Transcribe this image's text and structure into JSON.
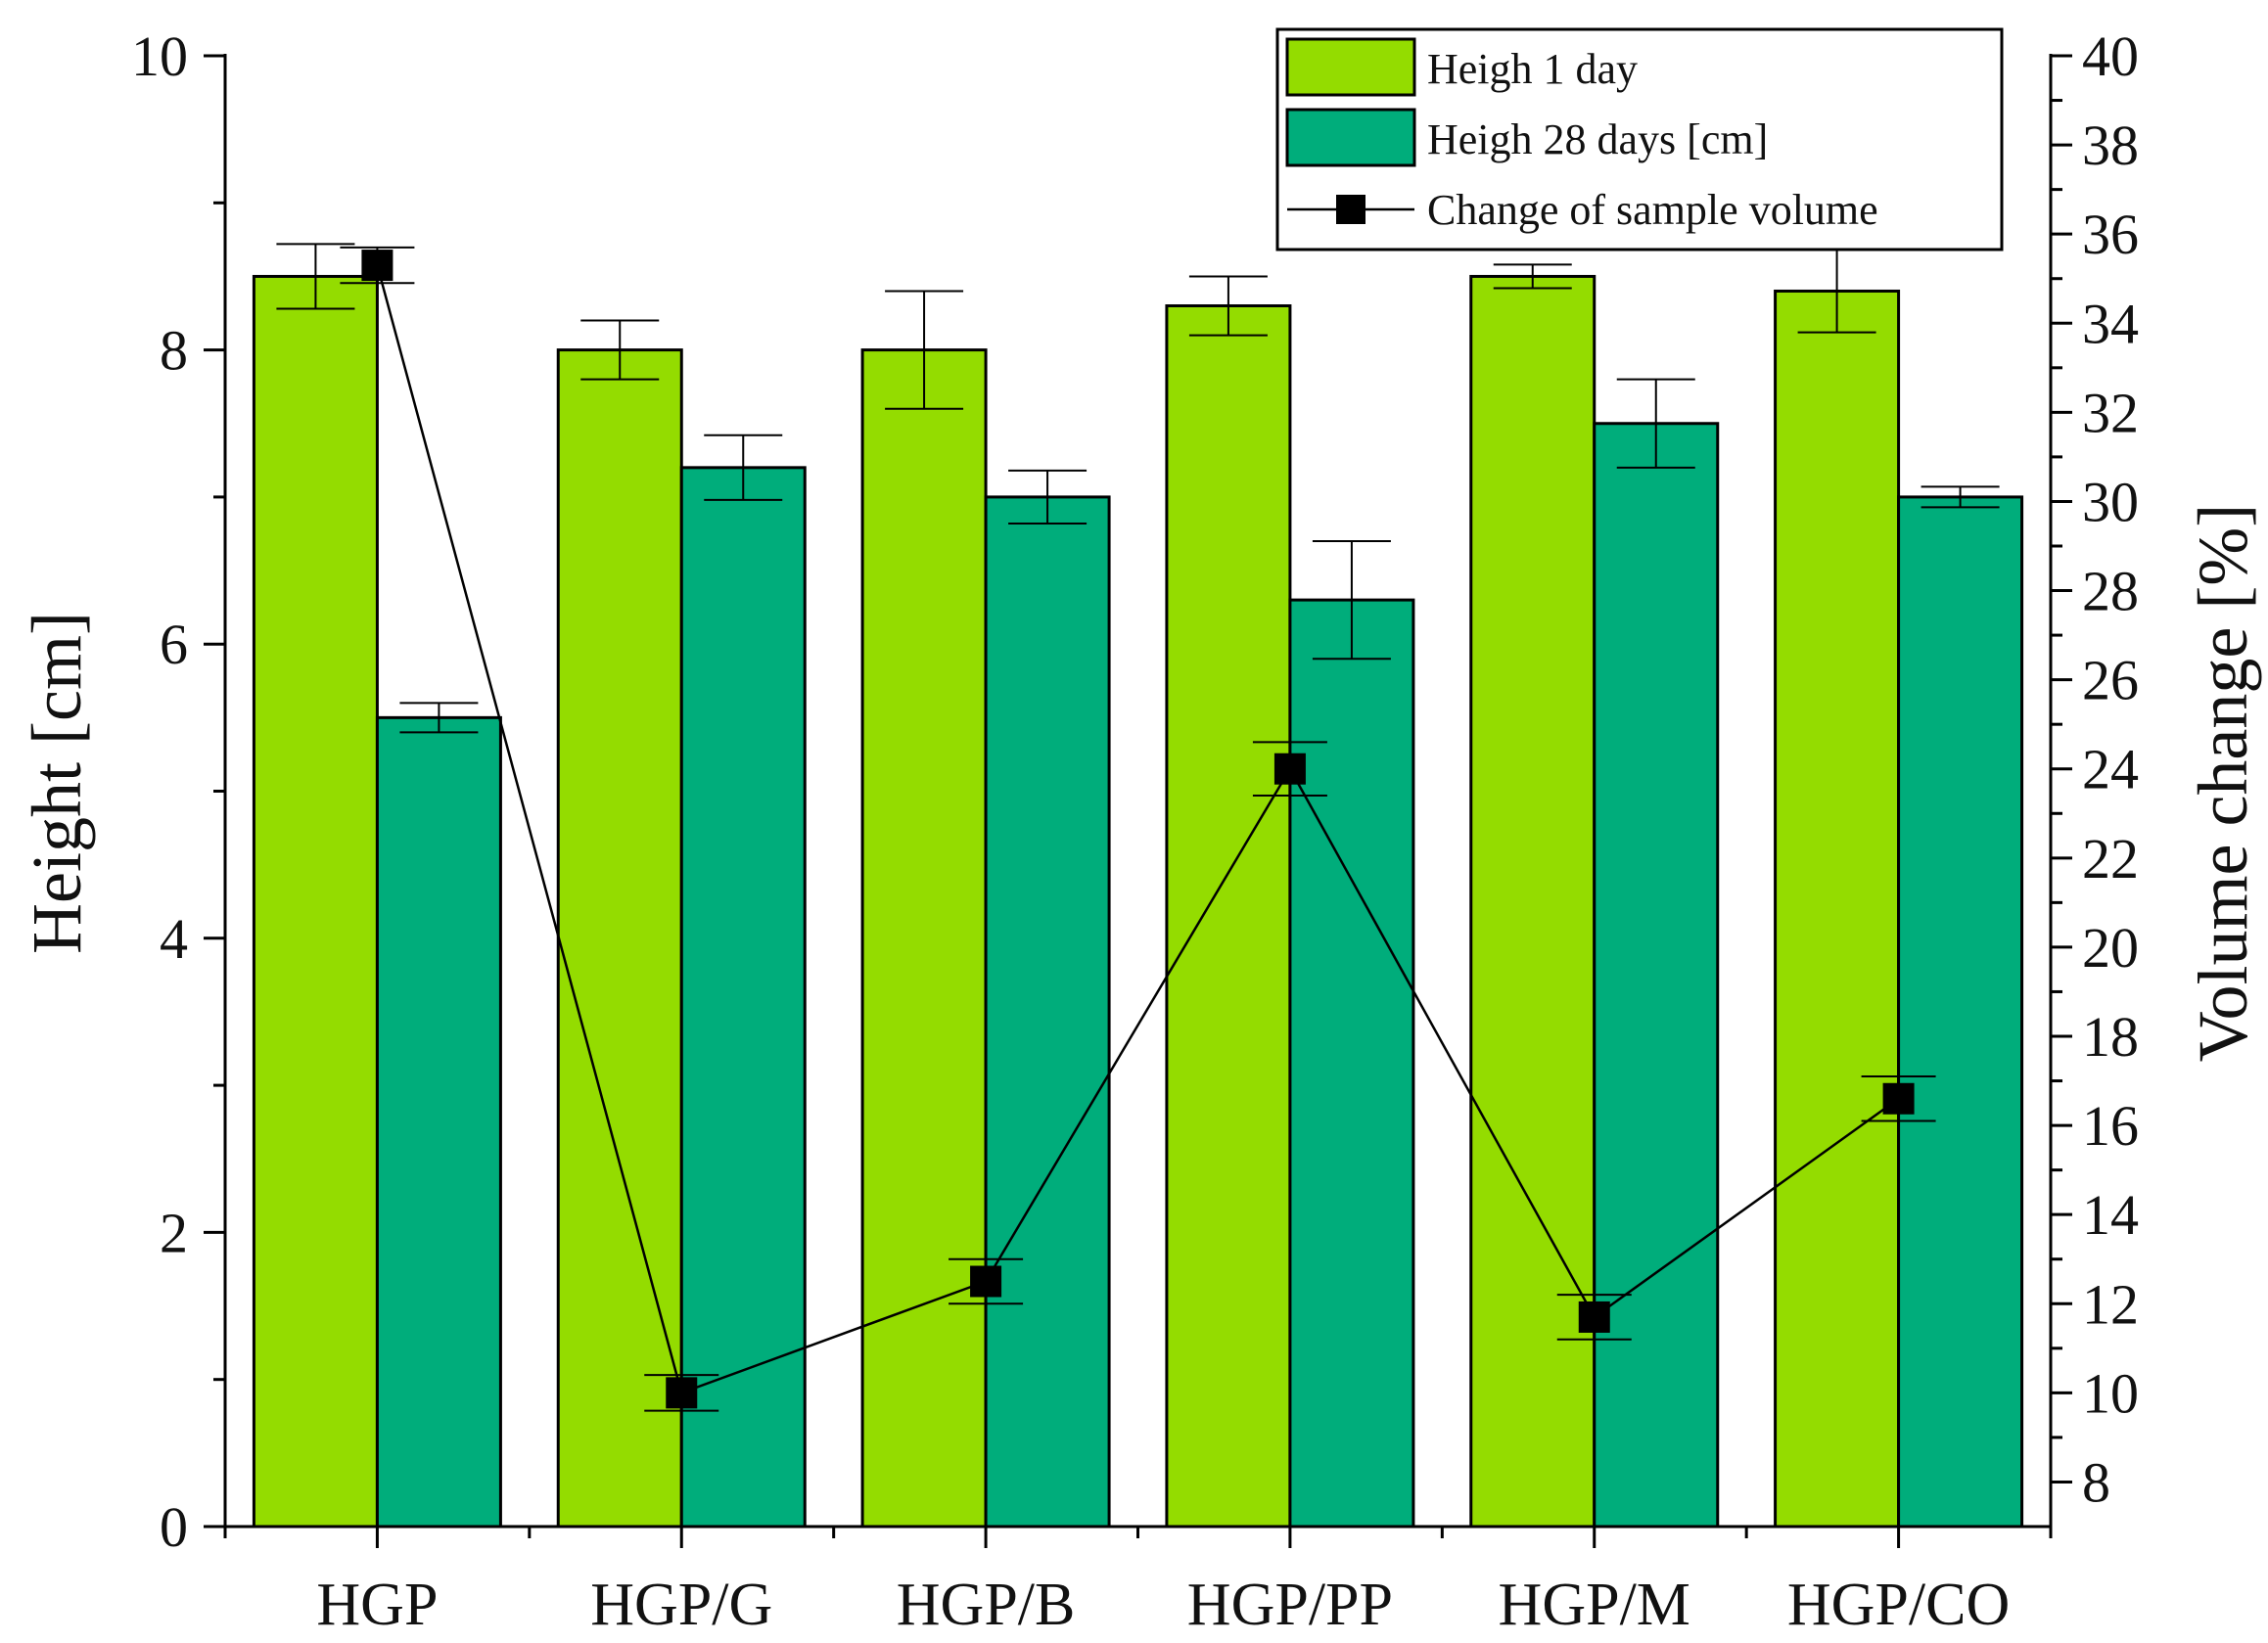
{
  "chart_data": {
    "type": "bar",
    "categories": [
      "HGP",
      "HGP/G",
      "HGP/B",
      "HGP/PP",
      "HGP/M",
      "HGP/CO"
    ],
    "series": [
      {
        "name": "Heigh 1 day",
        "axis": "left",
        "kind": "bar",
        "color": "#94dc00",
        "values": [
          8.5,
          8.0,
          8.0,
          8.3,
          8.5,
          8.4
        ],
        "errors": [
          0.22,
          0.2,
          0.4,
          0.2,
          0.08,
          0.28
        ]
      },
      {
        "name": "Heigh 28 days [cm]",
        "axis": "left",
        "kind": "bar",
        "color": "#00ad7b",
        "values": [
          5.5,
          7.2,
          7.0,
          6.3,
          7.5,
          7.0
        ],
        "errors": [
          0.1,
          0.22,
          0.18,
          0.4,
          0.3,
          0.07
        ]
      },
      {
        "name": "Change of sample volume",
        "axis": "right",
        "kind": "line",
        "color": "#000000",
        "values": [
          35.3,
          10.0,
          12.5,
          24.0,
          11.7,
          16.6
        ],
        "errors": [
          0.4,
          0.4,
          0.5,
          0.6,
          0.5,
          0.5
        ]
      }
    ],
    "ylabel": "Height [cm]",
    "y2label": "Volume change [%]",
    "ylim": [
      0,
      10
    ],
    "y2lim": [
      7,
      40
    ],
    "yticks": [
      "0",
      "2",
      "4",
      "6",
      "8",
      "10"
    ],
    "y2ticks": [
      "8",
      "10",
      "12",
      "14",
      "16",
      "18",
      "20",
      "22",
      "24",
      "26",
      "28",
      "30",
      "32",
      "34",
      "36",
      "38",
      "40"
    ],
    "legend_position": "top-right",
    "grid": false
  }
}
